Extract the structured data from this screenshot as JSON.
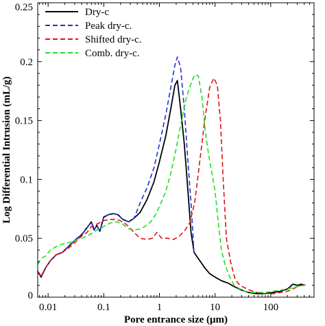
{
  "chart_data": {
    "type": "line",
    "title": "",
    "xlabel": "Pore entrance size (μm)",
    "ylabel": "Log Differential Intrusion (mL/g)",
    "xscale": "log",
    "xlim": [
      0.0065,
      600
    ],
    "ylim": [
      0,
      0.25
    ],
    "xticks": [
      {
        "value": 0.01,
        "label": "0.01"
      },
      {
        "value": 0.1,
        "label": "0.1"
      },
      {
        "value": 1,
        "label": "1"
      },
      {
        "value": 10,
        "label": "10"
      },
      {
        "value": 100,
        "label": "100"
      }
    ],
    "yticks": [
      {
        "value": 0,
        "label": "0"
      },
      {
        "value": 0.05,
        "label": "0.05"
      },
      {
        "value": 0.1,
        "label": "0.1"
      },
      {
        "value": 0.15,
        "label": "0.15"
      },
      {
        "value": 0.2,
        "label": "0.2"
      },
      {
        "value": 0.25,
        "label": "0.25"
      }
    ],
    "grid": false,
    "legend_position": "top-left",
    "series": [
      {
        "name": "Dry-c",
        "color": "#000000",
        "dash": "solid",
        "x": [
          0.0065,
          0.0075,
          0.009,
          0.011,
          0.014,
          0.018,
          0.022,
          0.027,
          0.033,
          0.04,
          0.05,
          0.06,
          0.067,
          0.075,
          0.085,
          0.1,
          0.12,
          0.15,
          0.18,
          0.22,
          0.28,
          0.35,
          0.45,
          0.6,
          0.8,
          1.0,
          1.3,
          1.6,
          1.9,
          2.1,
          2.4,
          2.8,
          3.2,
          3.7,
          4.2,
          4.8,
          5.5,
          6.5,
          8,
          10,
          13,
          17,
          22,
          30,
          40,
          55,
          80,
          110,
          150,
          200,
          250,
          300,
          350,
          420
        ],
        "y": [
          0.022,
          0.017,
          0.025,
          0.031,
          0.036,
          0.038,
          0.042,
          0.046,
          0.05,
          0.053,
          0.059,
          0.064,
          0.057,
          0.061,
          0.056,
          0.068,
          0.07,
          0.071,
          0.07,
          0.066,
          0.064,
          0.067,
          0.072,
          0.083,
          0.098,
          0.115,
          0.137,
          0.16,
          0.18,
          0.184,
          0.16,
          0.13,
          0.095,
          0.055,
          0.038,
          0.034,
          0.03,
          0.025,
          0.02,
          0.017,
          0.014,
          0.012,
          0.009,
          0.006,
          0.004,
          0.003,
          0.003,
          0.004,
          0.005,
          0.007,
          0.011,
          0.01,
          0.011,
          0.01
        ]
      },
      {
        "name": "Peak dry-c.",
        "color": "#1f2fd6",
        "dash": "dashed",
        "x": [
          0.0065,
          0.0075,
          0.009,
          0.011,
          0.014,
          0.018,
          0.022,
          0.027,
          0.033,
          0.04,
          0.05,
          0.06,
          0.067,
          0.075,
          0.085,
          0.1,
          0.12,
          0.15,
          0.18,
          0.22,
          0.28,
          0.35,
          0.45,
          0.6,
          0.8,
          1.0,
          1.3,
          1.6,
          1.9,
          2.1,
          2.4,
          2.8,
          3.2,
          3.7,
          4.2
        ],
        "y": [
          0.022,
          0.017,
          0.025,
          0.031,
          0.036,
          0.038,
          0.042,
          0.046,
          0.05,
          0.053,
          0.059,
          0.064,
          0.057,
          0.061,
          0.056,
          0.068,
          0.07,
          0.071,
          0.07,
          0.066,
          0.064,
          0.067,
          0.08,
          0.093,
          0.11,
          0.13,
          0.155,
          0.178,
          0.197,
          0.204,
          0.195,
          0.16,
          0.12,
          0.08,
          0.036
        ]
      },
      {
        "name": "Shifted dry-c.",
        "color": "#e01010",
        "dash": "dashed",
        "x": [
          0.0065,
          0.0075,
          0.009,
          0.011,
          0.014,
          0.018,
          0.022,
          0.027,
          0.033,
          0.04,
          0.05,
          0.06,
          0.075,
          0.1,
          0.13,
          0.17,
          0.22,
          0.28,
          0.35,
          0.45,
          0.6,
          0.75,
          0.9,
          1.1,
          1.4,
          1.8,
          2.3,
          2.9,
          3.5,
          4.3,
          5.3,
          6.5,
          8,
          9.5,
          11,
          12.5,
          14,
          16,
          19,
          23,
          28,
          34,
          42,
          55,
          80,
          110,
          150,
          200,
          250,
          300,
          350,
          420
        ],
        "y": [
          0.022,
          0.018,
          0.025,
          0.031,
          0.036,
          0.038,
          0.041,
          0.044,
          0.048,
          0.052,
          0.055,
          0.06,
          0.062,
          0.065,
          0.066,
          0.066,
          0.064,
          0.06,
          0.055,
          0.05,
          0.049,
          0.05,
          0.055,
          0.05,
          0.05,
          0.049,
          0.052,
          0.057,
          0.063,
          0.08,
          0.115,
          0.15,
          0.178,
          0.186,
          0.18,
          0.15,
          0.1,
          0.05,
          0.03,
          0.015,
          0.01,
          0.008,
          0.006,
          0.004,
          0.003,
          0.003,
          0.004,
          0.005,
          0.007,
          0.009,
          0.01,
          0.01
        ]
      },
      {
        "name": "Comb. dry-c.",
        "color": "#1ee01e",
        "dash": "dashed",
        "x": [
          0.0065,
          0.0075,
          0.009,
          0.011,
          0.014,
          0.018,
          0.022,
          0.027,
          0.033,
          0.04,
          0.05,
          0.06,
          0.075,
          0.1,
          0.13,
          0.17,
          0.22,
          0.28,
          0.35,
          0.45,
          0.55,
          0.7,
          0.85,
          1.0,
          1.3,
          1.6,
          2.0,
          2.5,
          3.0,
          3.6,
          4.3,
          5.0,
          5.8,
          6.7,
          7.7,
          8.8,
          10,
          11.5,
          13,
          15,
          18,
          22,
          28,
          35,
          45,
          60,
          80,
          110,
          150,
          200,
          250,
          300,
          350,
          420
        ],
        "y": [
          0.028,
          0.033,
          0.035,
          0.04,
          0.043,
          0.045,
          0.046,
          0.047,
          0.049,
          0.05,
          0.052,
          0.054,
          0.057,
          0.06,
          0.063,
          0.064,
          0.062,
          0.058,
          0.057,
          0.058,
          0.06,
          0.064,
          0.07,
          0.077,
          0.09,
          0.105,
          0.126,
          0.15,
          0.168,
          0.18,
          0.189,
          0.188,
          0.17,
          0.14,
          0.12,
          0.105,
          0.09,
          0.062,
          0.04,
          0.028,
          0.018,
          0.01,
          0.007,
          0.005,
          0.004,
          0.004,
          0.004,
          0.005,
          0.006,
          0.007,
          0.008,
          0.009,
          0.01,
          0.01
        ]
      }
    ]
  }
}
